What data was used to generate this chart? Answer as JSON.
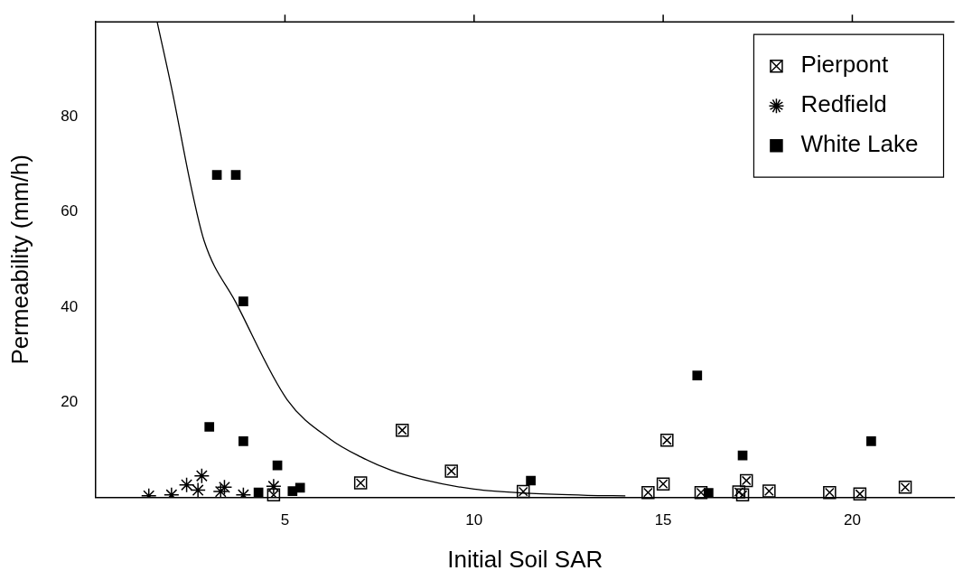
{
  "chart_data": {
    "type": "scatter",
    "xlabel": "Initial Soil SAR",
    "ylabel": "Permeability (mm/h)",
    "xlim": [
      0,
      22.7
    ],
    "xticks": [
      5,
      10,
      15,
      20
    ],
    "ylim": [
      0,
      100
    ],
    "yticks": [
      20,
      40,
      60,
      80
    ],
    "grid": false,
    "legend": "top right",
    "series": [
      {
        "name": "Pierpont",
        "color": "#000000",
        "x": [
          4.7,
          7.0,
          8.1,
          9.4,
          11.3,
          14.6,
          15.0,
          15.1,
          16.0,
          17.0,
          17.1,
          17.2,
          17.8,
          19.4,
          20.2,
          21.4
        ],
        "values": [
          0.5,
          3.0,
          14.1,
          5.5,
          1.2,
          1.0,
          2.8,
          12.0,
          1.0,
          1.1,
          0.5,
          3.5,
          1.3,
          1.0,
          0.7,
          2.1
        ]
      },
      {
        "name": "Redfield",
        "color": "#000000",
        "marker": "cross",
        "x": [
          1.4,
          2.0,
          2.4,
          2.7,
          2.8,
          3.3,
          3.4,
          3.9,
          4.7
        ],
        "values": [
          0.3,
          0.5,
          2.6,
          1.5,
          4.5,
          1.2,
          2.1,
          0.5,
          2.3
        ]
      },
      {
        "name": "White Lake",
        "color": "#000000",
        "marker": "square",
        "x": [
          3.0,
          3.2,
          3.7,
          3.9,
          3.9,
          4.3,
          4.8,
          5.2,
          5.4,
          11.5,
          15.9,
          16.2,
          17.1,
          20.5
        ],
        "values": [
          14.8,
          67.8,
          67.8,
          41.2,
          11.8,
          1.0,
          6.7,
          1.3,
          2.0,
          3.5,
          25.6,
          0.9,
          8.8,
          11.8
        ]
      },
      {
        "type": "line",
        "color": "#000000",
        "marker": "none",
        "line_style": "solid",
        "x": [
          1.62,
          2.03,
          2.5,
          2.86,
          3.7,
          5.06,
          6.2,
          7.0,
          7.8,
          8.6,
          10,
          11.5,
          13,
          14
        ],
        "values": [
          100,
          85,
          66,
          54,
          41,
          20.5,
          12.2,
          8.5,
          5.7,
          3.8,
          1.7,
          0.8,
          0.4,
          0.3
        ]
      }
    ]
  }
}
